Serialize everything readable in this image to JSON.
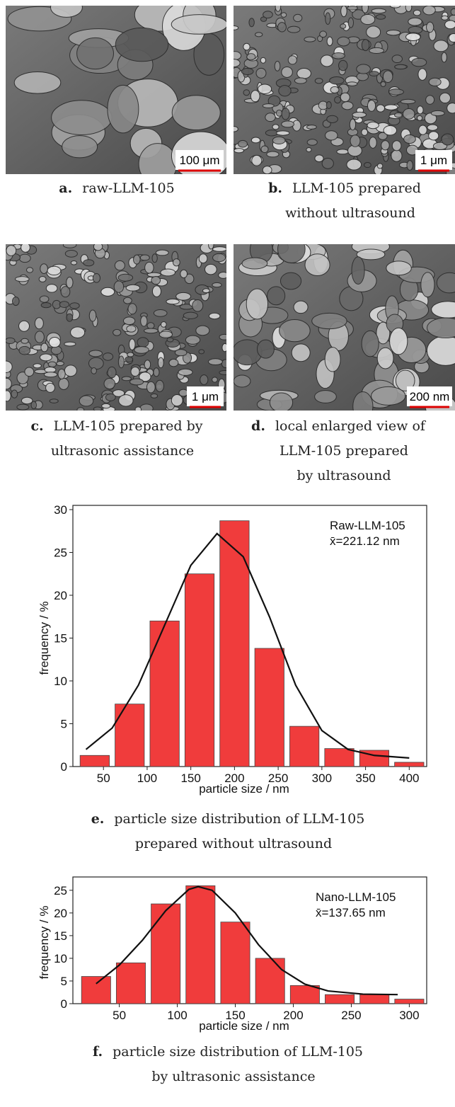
{
  "images": [
    {
      "scale_bar": "100 μm",
      "label": "a.",
      "caption": [
        "raw-LLM-105"
      ]
    },
    {
      "scale_bar": "1 μm",
      "label": "b.",
      "caption": [
        "LLM-105 prepared",
        "without ultrasound"
      ]
    },
    {
      "scale_bar": "1 μm",
      "label": "c.",
      "caption": [
        "LLM-105 prepared by",
        "ultrasonic assistance"
      ]
    },
    {
      "scale_bar": "200 nm",
      "label": "d.",
      "caption": [
        "local enlarged view of",
        "LLM-105 prepared",
        "by ultrasound"
      ]
    }
  ],
  "chart_data": [
    {
      "type": "histogram",
      "label": "e.",
      "caption": [
        "particle size distribution of LLM-105",
        "prepared without ultrasound"
      ],
      "xlabel": "particle size / nm",
      "ylabel": "frequency / %",
      "annotation": [
        "Raw-LLM-105",
        "x̄=221.12 nm"
      ],
      "bins": [
        20,
        60,
        100,
        140,
        180,
        220,
        260,
        300,
        340,
        380,
        420
      ],
      "values": [
        1.3,
        7.3,
        17,
        22.5,
        28.7,
        13.8,
        4.7,
        2.1,
        1.9,
        0.5
      ],
      "color": "#f03c3c",
      "fit": {
        "x": [
          30,
          60,
          90,
          120,
          150,
          180,
          210,
          240,
          270,
          300,
          330,
          360,
          400
        ],
        "values": [
          2.0,
          4.5,
          9.5,
          16.5,
          23.5,
          27.2,
          24.5,
          17.5,
          9.5,
          4.2,
          2.0,
          1.3,
          1.0
        ],
        "color": "#111111"
      },
      "xlim": [
        15,
        420
      ],
      "ylim": [
        0,
        30
      ],
      "xticks": [
        50,
        100,
        150,
        200,
        250,
        300,
        350,
        400
      ],
      "yticks": [
        0,
        5,
        10,
        15,
        20,
        25,
        30
      ]
    },
    {
      "type": "histogram",
      "label": "f.",
      "caption": [
        "particle size distribution of LLM-105",
        "by ultrasonic assistance"
      ],
      "xlabel": "particle size / nm",
      "ylabel": "frequency / %",
      "annotation": [
        "Nano-LLM-105",
        "x̄=137.65 nm"
      ],
      "bins": [
        15,
        45,
        75,
        105,
        135,
        165,
        195,
        225,
        255,
        285,
        315
      ],
      "values": [
        6,
        9,
        22,
        26,
        18,
        10,
        4,
        2,
        2,
        1
      ],
      "color": "#f03c3c",
      "fit": {
        "x": [
          30,
          50,
          70,
          90,
          110,
          118,
          130,
          150,
          170,
          190,
          210,
          230,
          260,
          290
        ],
        "values": [
          4.4,
          8.5,
          14,
          20.5,
          25.2,
          25.8,
          25,
          20,
          13,
          7.5,
          4.3,
          2.8,
          2.1,
          2.0
        ],
        "color": "#111111"
      },
      "xlim": [
        10,
        315
      ],
      "ylim": [
        0,
        27
      ],
      "xticks": [
        50,
        100,
        150,
        200,
        250,
        300
      ],
      "yticks": [
        0,
        5,
        10,
        15,
        20,
        25
      ]
    }
  ]
}
